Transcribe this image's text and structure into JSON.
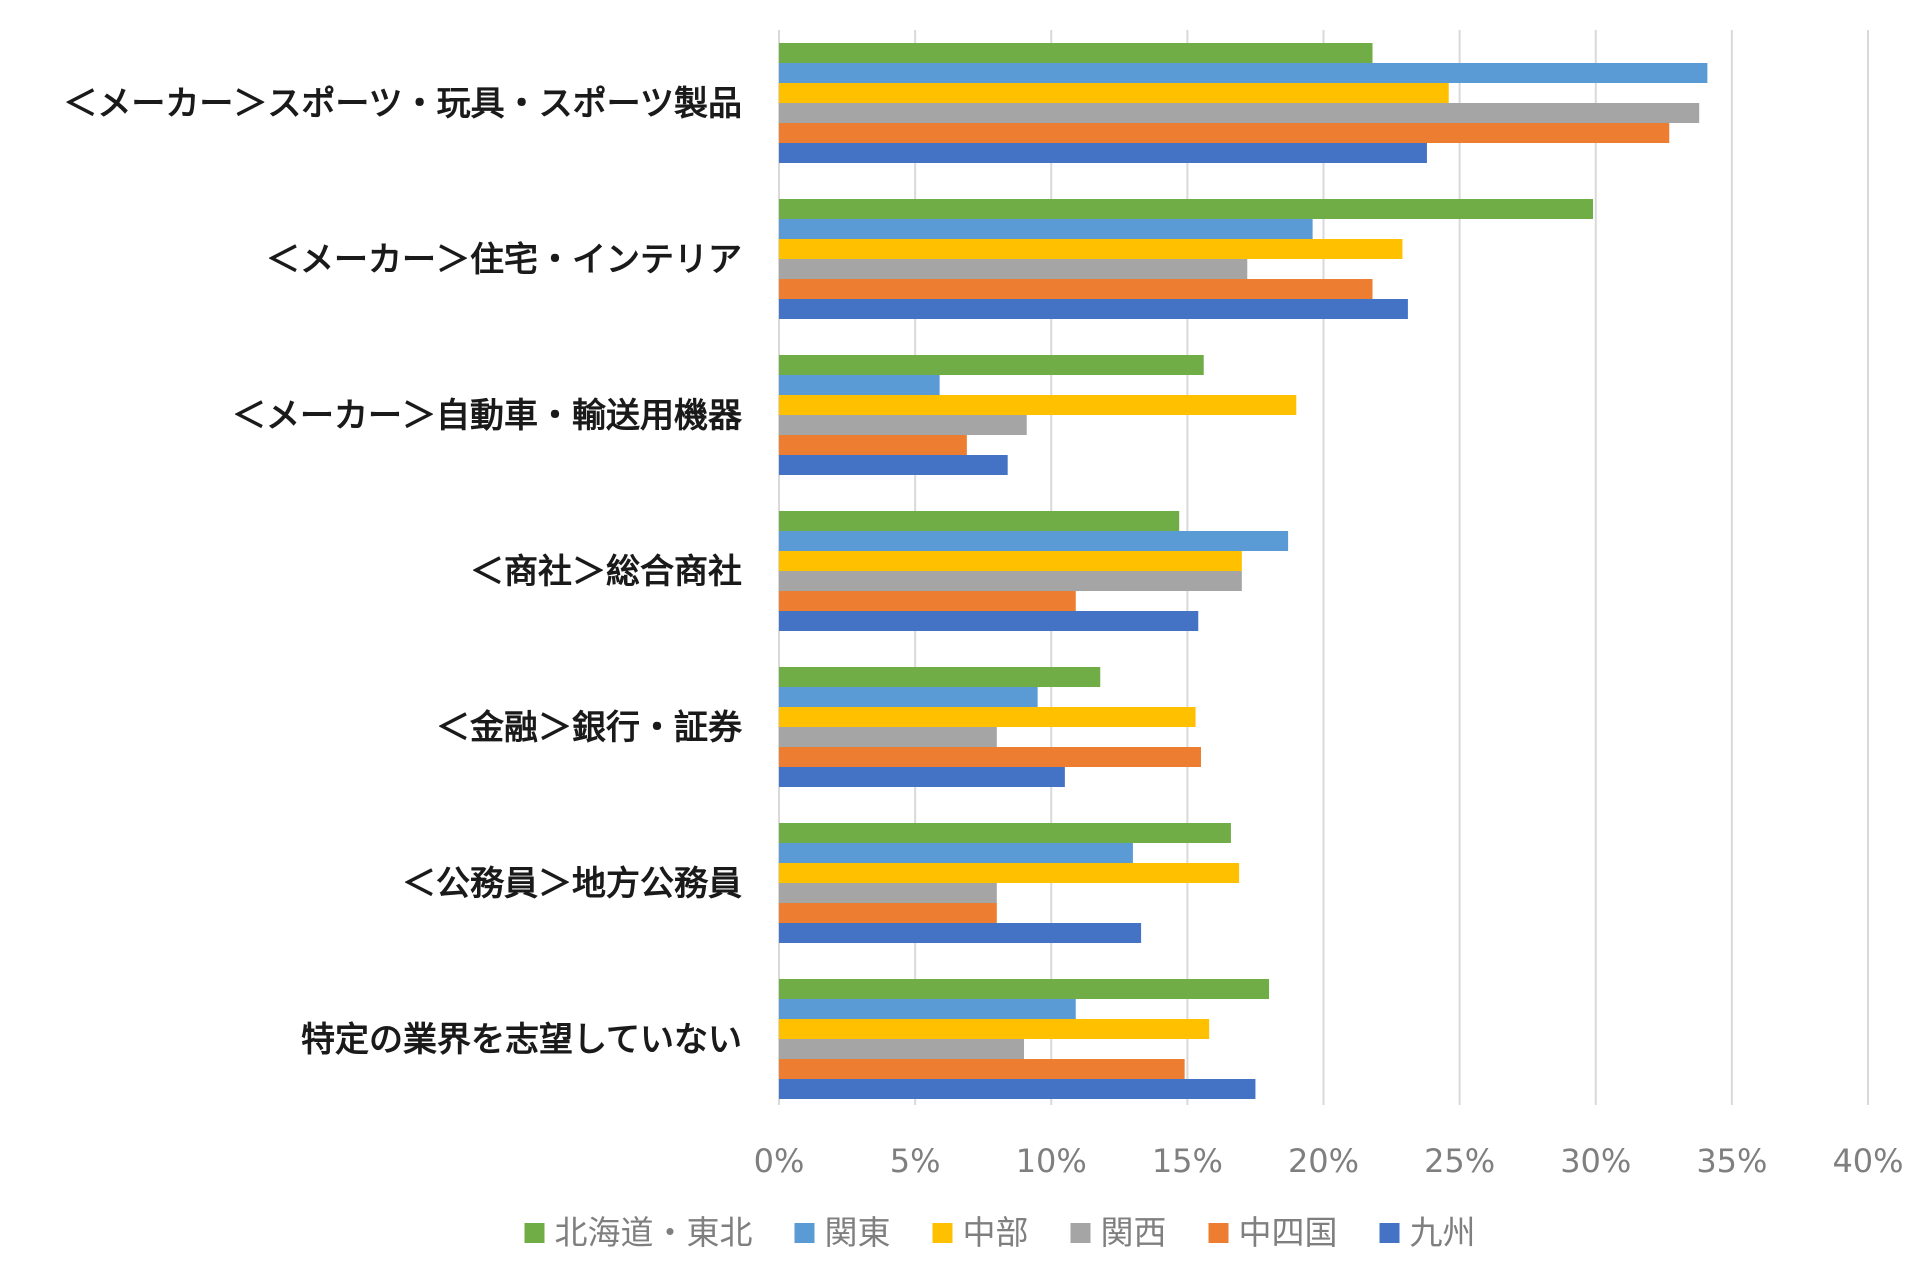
{
  "chart_data": {
    "type": "bar",
    "orientation": "horizontal",
    "categories": [
      "＜メーカー＞スポーツ・玩具・スポーツ製品",
      "＜メーカー＞住宅・インテリア",
      "＜メーカー＞自動車・輸送用機器",
      "＜商社＞総合商社",
      "＜金融＞銀行・証券",
      "＜公務員＞地方公務員",
      "特定の業界を志望していない"
    ],
    "series": [
      {
        "name": "北海道・東北",
        "color": "#70ad47",
        "values": [
          21.8,
          29.9,
          15.6,
          14.7,
          11.8,
          16.6,
          18.0
        ]
      },
      {
        "name": "関東",
        "color": "#5b9bd5",
        "values": [
          34.1,
          19.6,
          5.9,
          18.7,
          9.5,
          13.0,
          10.9
        ]
      },
      {
        "name": "中部",
        "color": "#ffc000",
        "values": [
          24.6,
          22.9,
          19.0,
          17.0,
          15.3,
          16.9,
          15.8
        ]
      },
      {
        "name": "関西",
        "color": "#a5a5a5",
        "values": [
          33.8,
          17.2,
          9.1,
          17.0,
          8.0,
          8.0,
          9.0
        ]
      },
      {
        "name": "中四国",
        "color": "#ed7d31",
        "values": [
          32.7,
          21.8,
          6.9,
          10.9,
          15.5,
          8.0,
          14.9
        ]
      },
      {
        "name": "九州",
        "color": "#4472c4",
        "values": [
          23.8,
          23.1,
          8.4,
          15.4,
          10.5,
          13.3,
          17.5
        ]
      }
    ],
    "xlim": [
      0,
      40
    ],
    "xticks": [
      0,
      5,
      10,
      15,
      20,
      25,
      30,
      35,
      40
    ],
    "tick_labels": [
      "0%",
      "5%",
      "10%",
      "15%",
      "20%",
      "25%",
      "30%",
      "35%",
      "40%"
    ],
    "grid": true,
    "legend_position": "bottom",
    "title": "",
    "xlabel": "",
    "ylabel": ""
  }
}
